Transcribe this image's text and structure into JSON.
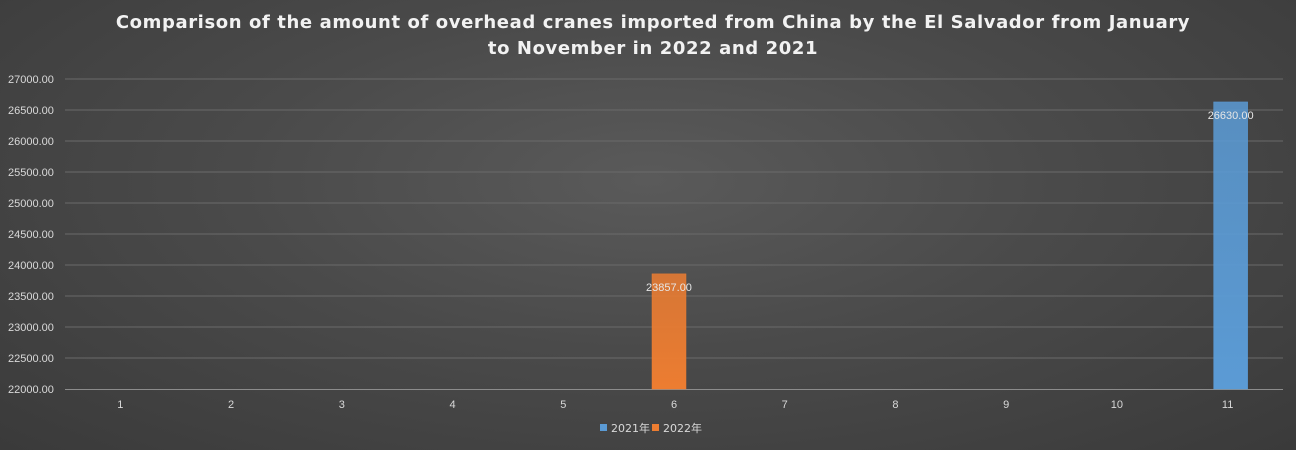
{
  "chart_data": {
    "type": "bar",
    "title_lines": [
      "Comparison of the amount of overhead cranes imported from China by the El Salvador from January",
      "to November in 2022 and 2021"
    ],
    "categories": [
      "1",
      "2",
      "3",
      "4",
      "5",
      "6",
      "7",
      "8",
      "9",
      "10",
      "11"
    ],
    "series": [
      {
        "name": "2021年",
        "color": "#5b9bd5",
        "values": [
          null,
          null,
          null,
          null,
          null,
          null,
          null,
          null,
          null,
          null,
          26630.0
        ]
      },
      {
        "name": "2022年",
        "color": "#ed7d31",
        "values": [
          null,
          null,
          null,
          null,
          null,
          23857.0,
          null,
          null,
          null,
          null,
          null
        ]
      }
    ],
    "data_labels": [
      {
        "series": 0,
        "category": 10,
        "text": "26630.00"
      },
      {
        "series": 1,
        "category": 5,
        "text": "23857.00"
      }
    ],
    "ylim": [
      22000,
      27000
    ],
    "yticks": [
      "22000.00",
      "22500.00",
      "23000.00",
      "23500.00",
      "24000.00",
      "24500.00",
      "25000.00",
      "25500.00",
      "26000.00",
      "26500.00",
      "27000.00"
    ],
    "ytick_values": [
      22000,
      22500,
      23000,
      23500,
      24000,
      24500,
      25000,
      25500,
      26000,
      26500,
      27000
    ],
    "grid": true,
    "legend_position": "bottom"
  }
}
